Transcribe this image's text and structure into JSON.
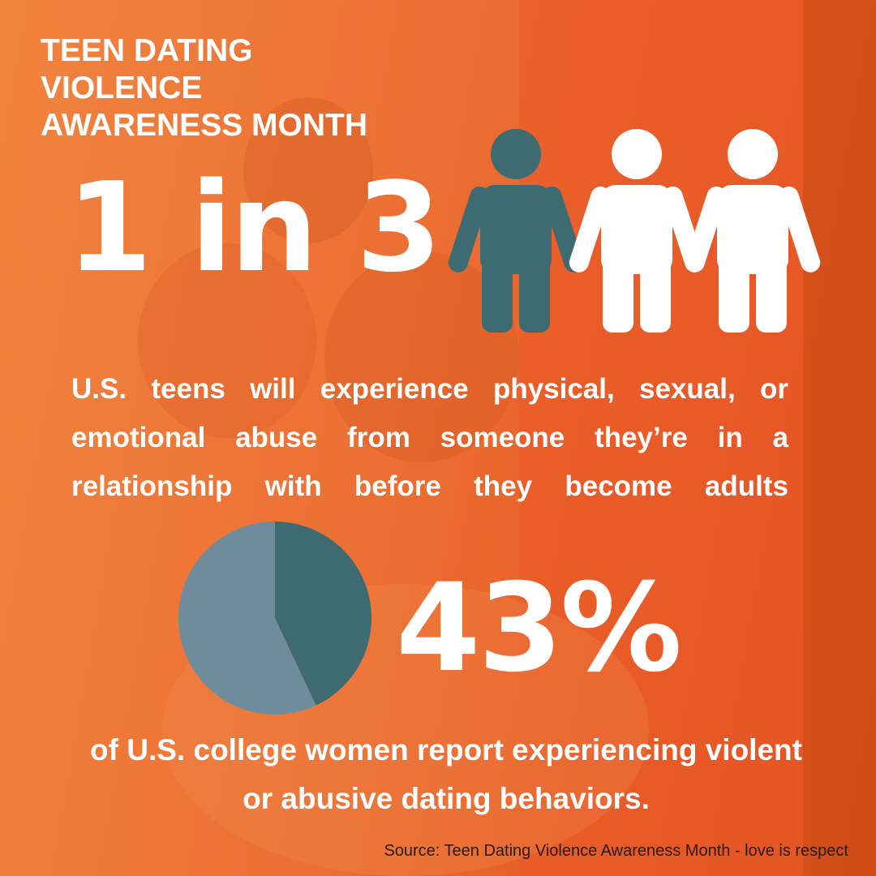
{
  "header": {
    "title_lines": [
      "TEEN DATING",
      "VIOLENCE",
      "AWARENESS MONTH"
    ]
  },
  "stats": [
    {
      "headline": "1 in 3",
      "text": "U.S. teens will experience physical, sexual, or emotional abuse from someone they’re in a relationship with before they become adults"
    },
    {
      "value": 43,
      "value_label": "43%",
      "text": "of U.S. college women report experiencing violent or abusive dating behaviors."
    }
  ],
  "footer": {
    "source": "Source: Teen Dating Violence Awareness Month - love is respect"
  }
}
